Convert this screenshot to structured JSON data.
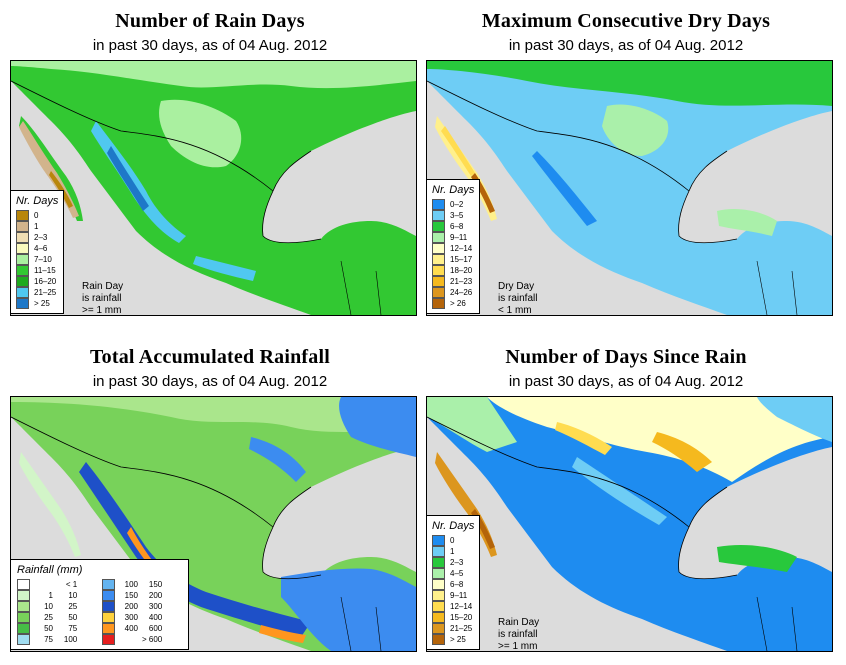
{
  "date": "04 Aug. 2012",
  "panels": {
    "rain_days": {
      "title": "Number of Rain Days",
      "subtitle": "in past 30 days, as of  04 Aug. 2012",
      "legend_title": "Nr. Days",
      "legend": [
        {
          "label": "0",
          "color": "#b8860b"
        },
        {
          "label": "1",
          "color": "#d2b48c"
        },
        {
          "label": "2–3",
          "color": "#f0deb4"
        },
        {
          "label": "4–6",
          "color": "#fafabe"
        },
        {
          "label": "7–10",
          "color": "#aaf0a0"
        },
        {
          "label": "11–15",
          "color": "#32c832"
        },
        {
          "label": "16–20",
          "color": "#1eaa1e"
        },
        {
          "label": "21–25",
          "color": "#50c8f0"
        },
        {
          "label": "> 25",
          "color": "#1e78c8"
        }
      ],
      "note": [
        "Rain Day",
        "is rainfall",
        ">= 1 mm"
      ]
    },
    "dry_days": {
      "title": "Maximum Consecutive Dry Days",
      "subtitle": "in past 30 days, as of  04 Aug. 2012",
      "legend_title": "Nr. Days",
      "legend": [
        {
          "label": "0–2",
          "color": "#1e8cf0"
        },
        {
          "label": "3–5",
          "color": "#6ecdf5"
        },
        {
          "label": "6–8",
          "color": "#28c83c"
        },
        {
          "label": "9–11",
          "color": "#aaf0aa"
        },
        {
          "label": "12–14",
          "color": "#ffffc8"
        },
        {
          "label": "15–17",
          "color": "#fff08c"
        },
        {
          "label": "18–20",
          "color": "#ffdc50"
        },
        {
          "label": "21–23",
          "color": "#f5b91e"
        },
        {
          "label": "24–26",
          "color": "#dc961e"
        },
        {
          "label": "> 26",
          "color": "#b4640a"
        }
      ],
      "note": [
        "Dry Day",
        "is rainfall",
        "< 1 mm"
      ]
    },
    "total_rain": {
      "title": "Total Accumulated Rainfall",
      "subtitle": "in past 30 days, as of  04 Aug. 2012",
      "legend_title": "Rainfall (mm)",
      "legend_left": [
        {
          "lo": "",
          "hi": "< 1",
          "color": "#ffffff"
        },
        {
          "lo": "1",
          "hi": "10",
          "color": "#d2f5c8"
        },
        {
          "lo": "10",
          "hi": "25",
          "color": "#aae68c"
        },
        {
          "lo": "25",
          "hi": "50",
          "color": "#78d25a"
        },
        {
          "lo": "50",
          "hi": "75",
          "color": "#46be46"
        },
        {
          "lo": "75",
          "hi": "100",
          "color": "#a0dcf0"
        }
      ],
      "legend_right": [
        {
          "lo": "100",
          "hi": "150",
          "color": "#64b4f0"
        },
        {
          "lo": "150",
          "hi": "200",
          "color": "#3c8cf0"
        },
        {
          "lo": "200",
          "hi": "300",
          "color": "#1e50c8"
        },
        {
          "lo": "300",
          "hi": "400",
          "color": "#ffd23c"
        },
        {
          "lo": "400",
          "hi": "600",
          "color": "#ff961e"
        },
        {
          "lo": "",
          "hi": "> 600",
          "color": "#e61e1e"
        }
      ]
    },
    "since_rain": {
      "title": "Number of Days Since Rain",
      "subtitle": "in past 30 days, as of  04 Aug. 2012",
      "legend_title": "Nr. Days",
      "legend": [
        {
          "label": "0",
          "color": "#1e8cf0"
        },
        {
          "label": "1",
          "color": "#6ecdf5"
        },
        {
          "label": "2–3",
          "color": "#28c83c"
        },
        {
          "label": "4–5",
          "color": "#aaf0aa"
        },
        {
          "label": "6–8",
          "color": "#ffffc8"
        },
        {
          "label": "9–11",
          "color": "#fff08c"
        },
        {
          "label": "12–14",
          "color": "#ffdc50"
        },
        {
          "label": "15–20",
          "color": "#f5b91e"
        },
        {
          "label": "21–25",
          "color": "#dc961e"
        },
        {
          "label": "> 25",
          "color": "#b4640a"
        }
      ],
      "note": [
        "Rain Day",
        "is rainfall",
        ">= 1 mm"
      ]
    }
  }
}
